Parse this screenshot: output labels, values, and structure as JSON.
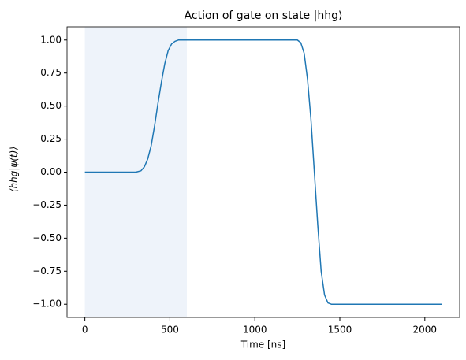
{
  "chart_data": {
    "type": "line",
    "title": "Action of gate on state |hhg⟩",
    "xlabel": "Time [ns]",
    "ylabel": "⟨hhg|ψ(t)⟩",
    "x": [
      0,
      100,
      200,
      300,
      330,
      350,
      370,
      390,
      410,
      430,
      450,
      470,
      490,
      510,
      530,
      550,
      575,
      600,
      800,
      1000,
      1200,
      1250,
      1270,
      1290,
      1310,
      1330,
      1350,
      1370,
      1390,
      1410,
      1430,
      1450,
      1475,
      1500,
      1700,
      1900,
      2100
    ],
    "series": [
      {
        "color": "#1f77b4",
        "values": [
          0,
          0,
          0,
          0,
          0.01,
          0.04,
          0.1,
          0.2,
          0.35,
          0.52,
          0.68,
          0.82,
          0.92,
          0.97,
          0.99,
          1,
          1,
          1,
          1,
          1,
          1,
          1,
          0.98,
          0.9,
          0.7,
          0.4,
          0,
          -0.4,
          -0.75,
          -0.93,
          -0.99,
          -1,
          -1,
          -1,
          -1,
          -1,
          -1
        ]
      }
    ],
    "highlight_xrange": [
      0,
      600
    ],
    "highlight_color": "#eef3fa",
    "xlim": [
      -105,
      2205
    ],
    "ylim": [
      -1.1,
      1.1
    ],
    "xticks": [
      0,
      500,
      1000,
      1500,
      2000
    ],
    "yticks": [
      {
        "value": -1,
        "label": "−1.00"
      },
      {
        "value": -0.75,
        "label": "−0.75"
      },
      {
        "value": -0.5,
        "label": "−0.50"
      },
      {
        "value": -0.25,
        "label": "−0.25"
      },
      {
        "value": 0,
        "label": "0.00"
      },
      {
        "value": 0.25,
        "label": "0.25"
      },
      {
        "value": 0.5,
        "label": "0.50"
      },
      {
        "value": 0.75,
        "label": "0.75"
      },
      {
        "value": 1,
        "label": "1.00"
      }
    ]
  }
}
